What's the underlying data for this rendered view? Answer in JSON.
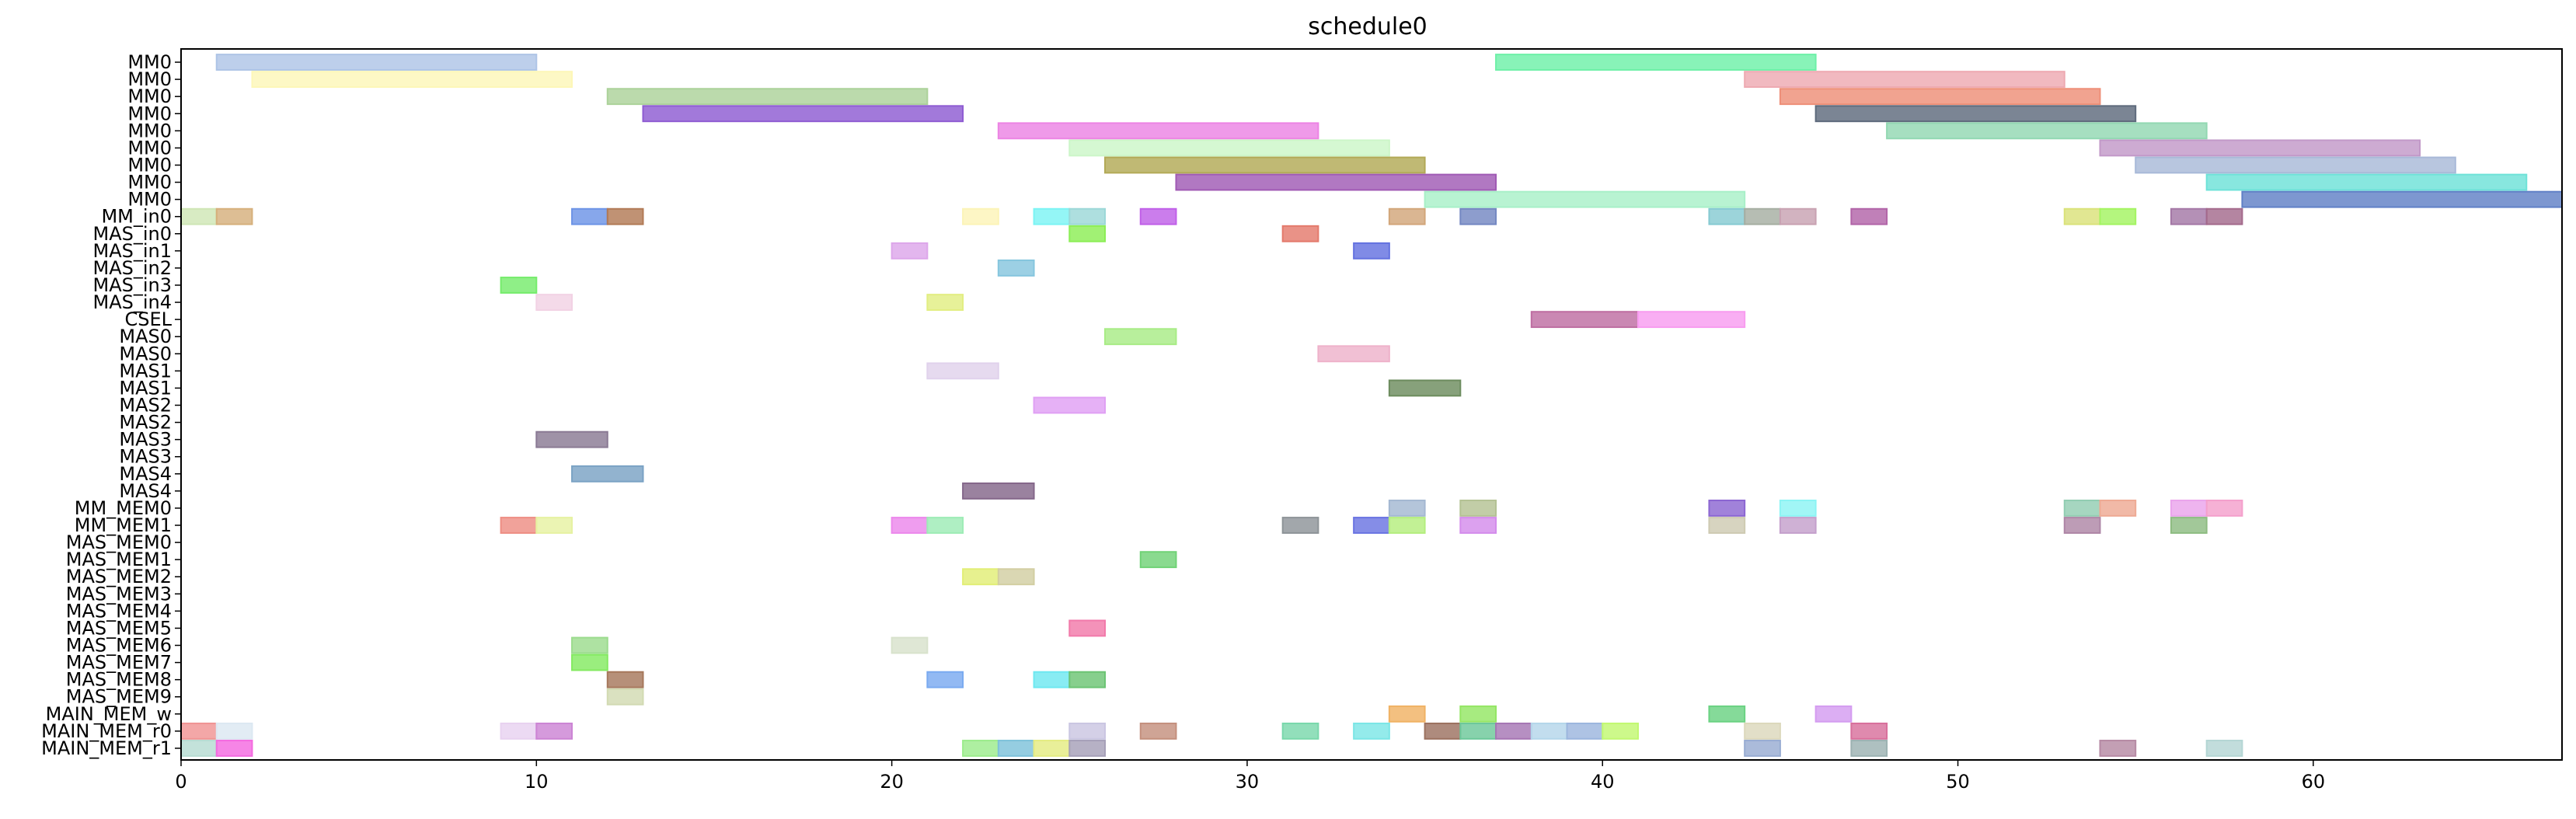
{
  "chart_data": {
    "type": "gantt",
    "title": "schedule0",
    "xlabel": "",
    "ylabel": "",
    "xlim": [
      0,
      67
    ],
    "x_ticks": [
      0,
      10,
      20,
      30,
      40,
      50,
      60
    ],
    "grid": false,
    "rows": [
      "MM0",
      "MM0",
      "MM0",
      "MM0",
      "MM0",
      "MM0",
      "MM0",
      "MM0",
      "MM0",
      "MM_in0",
      "MAS_in0",
      "MAS_in1",
      "MAS_in2",
      "MAS_in3",
      "MAS_in4",
      "CSEL",
      "MAS0",
      "MAS0",
      "MAS1",
      "MAS1",
      "MAS2",
      "MAS2",
      "MAS3",
      "MAS3",
      "MAS4",
      "MAS4",
      "MM_MEM0",
      "MM_MEM1",
      "MAS_MEM0",
      "MAS_MEM1",
      "MAS_MEM2",
      "MAS_MEM3",
      "MAS_MEM4",
      "MAS_MEM5",
      "MAS_MEM6",
      "MAS_MEM7",
      "MAS_MEM8",
      "MAS_MEM9",
      "MAIN_MEM_w",
      "MAIN_MEM_r0",
      "MAIN_MEM_r1"
    ],
    "tasks": [
      {
        "row": 0,
        "start": 1,
        "end": 10,
        "color": "#aec4e6"
      },
      {
        "row": 0,
        "start": 37,
        "end": 46,
        "color": "#6ef0a8"
      },
      {
        "row": 1,
        "start": 2,
        "end": 11,
        "color": "#fdf7b8"
      },
      {
        "row": 1,
        "start": 44,
        "end": 53,
        "color": "#eeaab2"
      },
      {
        "row": 2,
        "start": 12,
        "end": 21,
        "color": "#acd29a"
      },
      {
        "row": 2,
        "start": 45,
        "end": 54,
        "color": "#ee8f78"
      },
      {
        "row": 3,
        "start": 13,
        "end": 22,
        "color": "#8e5cd2"
      },
      {
        "row": 3,
        "start": 46,
        "end": 55,
        "color": "#5e6a7c"
      },
      {
        "row": 4,
        "start": 23,
        "end": 32,
        "color": "#ec84e4"
      },
      {
        "row": 4,
        "start": 48,
        "end": 57,
        "color": "#92d8b2"
      },
      {
        "row": 5,
        "start": 25,
        "end": 34,
        "color": "#ccf6c8"
      },
      {
        "row": 5,
        "start": 54,
        "end": 63,
        "color": "#c299c8"
      },
      {
        "row": 6,
        "start": 26,
        "end": 35,
        "color": "#b2a956"
      },
      {
        "row": 6,
        "start": 55,
        "end": 64,
        "color": "#a8b9d8"
      },
      {
        "row": 7,
        "start": 28,
        "end": 37,
        "color": "#a05ab4"
      },
      {
        "row": 7,
        "start": 57,
        "end": 66,
        "color": "#6ee2d8"
      },
      {
        "row": 8,
        "start": 35,
        "end": 44,
        "color": "#a8f0c8"
      },
      {
        "row": 8,
        "start": 58,
        "end": 67,
        "color": "#6080c6"
      },
      {
        "row": 9,
        "start": 0,
        "end": 1,
        "color": "#cfe6b6"
      },
      {
        "row": 9,
        "start": 1,
        "end": 2,
        "color": "#d6b07c"
      },
      {
        "row": 9,
        "start": 11,
        "end": 12,
        "color": "#6d94e6"
      },
      {
        "row": 9,
        "start": 12,
        "end": 13,
        "color": "#b27a56"
      },
      {
        "row": 9,
        "start": 22,
        "end": 23,
        "color": "#fcf4b8"
      },
      {
        "row": 9,
        "start": 24,
        "end": 25,
        "color": "#7cf4f4"
      },
      {
        "row": 9,
        "start": 25,
        "end": 26,
        "color": "#9cd8d8"
      },
      {
        "row": 9,
        "start": 27,
        "end": 28,
        "color": "#c060e8"
      },
      {
        "row": 9,
        "start": 34,
        "end": 35,
        "color": "#d2a67a"
      },
      {
        "row": 9,
        "start": 36,
        "end": 37,
        "color": "#7488c2"
      },
      {
        "row": 9,
        "start": 43,
        "end": 44,
        "color": "#86cad2"
      },
      {
        "row": 9,
        "start": 44,
        "end": 45,
        "color": "#a6aea2"
      },
      {
        "row": 9,
        "start": 45,
        "end": 46,
        "color": "#c8a2b2"
      },
      {
        "row": 9,
        "start": 47,
        "end": 48,
        "color": "#b264a8"
      },
      {
        "row": 9,
        "start": 53,
        "end": 54,
        "color": "#dae27a"
      },
      {
        "row": 9,
        "start": 54,
        "end": 55,
        "color": "#a4f462"
      },
      {
        "row": 9,
        "start": 56,
        "end": 57,
        "color": "#a478a6"
      },
      {
        "row": 9,
        "start": 57,
        "end": 58,
        "color": "#a46a8c"
      },
      {
        "row": 10,
        "start": 25,
        "end": 26,
        "color": "#8cee56"
      },
      {
        "row": 10,
        "start": 31,
        "end": 32,
        "color": "#e47a6c"
      },
      {
        "row": 11,
        "start": 20,
        "end": 21,
        "color": "#dda6ea"
      },
      {
        "row": 11,
        "start": 33,
        "end": 34,
        "color": "#6472e0"
      },
      {
        "row": 12,
        "start": 23,
        "end": 24,
        "color": "#86c6de"
      },
      {
        "row": 13,
        "start": 9,
        "end": 10,
        "color": "#76ec6c"
      },
      {
        "row": 14,
        "start": 10,
        "end": 11,
        "color": "#f2d2e4"
      },
      {
        "row": 14,
        "start": 21,
        "end": 22,
        "color": "#e2ee82"
      },
      {
        "row": 15,
        "start": 38,
        "end": 41,
        "color": "#be6ea2"
      },
      {
        "row": 15,
        "start": 41,
        "end": 44,
        "color": "#f89cf0"
      },
      {
        "row": 16,
        "start": 26,
        "end": 28,
        "color": "#a8ec86"
      },
      {
        "row": 17,
        "start": 32,
        "end": 34,
        "color": "#eeb2ca"
      },
      {
        "row": 18,
        "start": 21,
        "end": 23,
        "color": "#e0d2ec"
      },
      {
        "row": 19,
        "start": 34,
        "end": 36,
        "color": "#6c8c5e"
      },
      {
        "row": 20,
        "start": 24,
        "end": 26,
        "color": "#e0a0f4"
      },
      {
        "row": 22,
        "start": 10,
        "end": 12,
        "color": "#8a7a94"
      },
      {
        "row": 24,
        "start": 11,
        "end": 13,
        "color": "#7aa2c4"
      },
      {
        "row": 25,
        "start": 22,
        "end": 24,
        "color": "#84678a"
      },
      {
        "row": 26,
        "start": 34,
        "end": 35,
        "color": "#a4b8d2"
      },
      {
        "row": 26,
        "start": 36,
        "end": 37,
        "color": "#b4c294"
      },
      {
        "row": 26,
        "start": 43,
        "end": 44,
        "color": "#8c66d2"
      },
      {
        "row": 26,
        "start": 45,
        "end": 46,
        "color": "#8cf4f4"
      },
      {
        "row": 26,
        "start": 53,
        "end": 54,
        "color": "#92cdb2"
      },
      {
        "row": 26,
        "start": 54,
        "end": 55,
        "color": "#eeaa94"
      },
      {
        "row": 26,
        "start": 56,
        "end": 57,
        "color": "#eaa4ec"
      },
      {
        "row": 26,
        "start": 57,
        "end": 58,
        "color": "#f4a0cc"
      },
      {
        "row": 27,
        "start": 9,
        "end": 10,
        "color": "#ee8e84"
      },
      {
        "row": 27,
        "start": 10,
        "end": 11,
        "color": "#e6f2a2"
      },
      {
        "row": 27,
        "start": 20,
        "end": 21,
        "color": "#ec88ec"
      },
      {
        "row": 27,
        "start": 21,
        "end": 22,
        "color": "#9eecb6"
      },
      {
        "row": 27,
        "start": 31,
        "end": 32,
        "color": "#8e9498"
      },
      {
        "row": 27,
        "start": 33,
        "end": 34,
        "color": "#6a74e2"
      },
      {
        "row": 27,
        "start": 34,
        "end": 35,
        "color": "#b4ee7e"
      },
      {
        "row": 27,
        "start": 36,
        "end": 37,
        "color": "#d48cec"
      },
      {
        "row": 27,
        "start": 43,
        "end": 44,
        "color": "#cecab2"
      },
      {
        "row": 27,
        "start": 45,
        "end": 46,
        "color": "#c4a0cc"
      },
      {
        "row": 27,
        "start": 53,
        "end": 54,
        "color": "#ae86a6"
      },
      {
        "row": 27,
        "start": 56,
        "end": 57,
        "color": "#8ebc82"
      },
      {
        "row": 29,
        "start": 27,
        "end": 28,
        "color": "#70d276"
      },
      {
        "row": 30,
        "start": 22,
        "end": 23,
        "color": "#e2ee76"
      },
      {
        "row": 30,
        "start": 23,
        "end": 24,
        "color": "#d2cea2"
      },
      {
        "row": 33,
        "start": 25,
        "end": 26,
        "color": "#f27aaa"
      },
      {
        "row": 34,
        "start": 11,
        "end": 12,
        "color": "#9cdc8e"
      },
      {
        "row": 34,
        "start": 20,
        "end": 21,
        "color": "#d8e2cc"
      },
      {
        "row": 35,
        "start": 11,
        "end": 12,
        "color": "#84ea62"
      },
      {
        "row": 36,
        "start": 12,
        "end": 13,
        "color": "#a6785c"
      },
      {
        "row": 36,
        "start": 21,
        "end": 22,
        "color": "#7aaaf0"
      },
      {
        "row": 36,
        "start": 24,
        "end": 25,
        "color": "#6ee8f0"
      },
      {
        "row": 36,
        "start": 25,
        "end": 26,
        "color": "#6cc474"
      },
      {
        "row": 37,
        "start": 12,
        "end": 13,
        "color": "#d2dab2"
      },
      {
        "row": 38,
        "start": 34,
        "end": 35,
        "color": "#f0b264"
      },
      {
        "row": 38,
        "start": 36,
        "end": 37,
        "color": "#94e664"
      },
      {
        "row": 38,
        "start": 43,
        "end": 44,
        "color": "#6ad282"
      },
      {
        "row": 38,
        "start": 46,
        "end": 47,
        "color": "#d49cf0"
      },
      {
        "row": 39,
        "start": 0,
        "end": 1,
        "color": "#f09494"
      },
      {
        "row": 39,
        "start": 1,
        "end": 2,
        "color": "#dce8f2"
      },
      {
        "row": 39,
        "start": 9,
        "end": 10,
        "color": "#e8d2f0"
      },
      {
        "row": 39,
        "start": 10,
        "end": 11,
        "color": "#cc84d4"
      },
      {
        "row": 39,
        "start": 25,
        "end": 26,
        "color": "#cac6e2"
      },
      {
        "row": 39,
        "start": 27,
        "end": 28,
        "color": "#c4907e"
      },
      {
        "row": 39,
        "start": 31,
        "end": 32,
        "color": "#7ad8ac"
      },
      {
        "row": 39,
        "start": 33,
        "end": 34,
        "color": "#7ce6e6"
      },
      {
        "row": 39,
        "start": 35,
        "end": 36,
        "color": "#9c7260"
      },
      {
        "row": 39,
        "start": 36,
        "end": 37,
        "color": "#6cc89a"
      },
      {
        "row": 39,
        "start": 37,
        "end": 38,
        "color": "#a676b4"
      },
      {
        "row": 39,
        "start": 38,
        "end": 39,
        "color": "#b4d6ea"
      },
      {
        "row": 39,
        "start": 39,
        "end": 40,
        "color": "#9cb6de"
      },
      {
        "row": 39,
        "start": 40,
        "end": 41,
        "color": "#c2f872"
      },
      {
        "row": 39,
        "start": 44,
        "end": 45,
        "color": "#dcd8bc"
      },
      {
        "row": 39,
        "start": 47,
        "end": 48,
        "color": "#d8709c"
      },
      {
        "row": 40,
        "start": 0,
        "end": 1,
        "color": "#b6dcd2"
      },
      {
        "row": 40,
        "start": 1,
        "end": 2,
        "color": "#f46ae0"
      },
      {
        "row": 40,
        "start": 22,
        "end": 23,
        "color": "#9cec8c"
      },
      {
        "row": 40,
        "start": 23,
        "end": 24,
        "color": "#7ec2da"
      },
      {
        "row": 40,
        "start": 24,
        "end": 25,
        "color": "#e4ec82"
      },
      {
        "row": 40,
        "start": 25,
        "end": 26,
        "color": "#a6a0b8"
      },
      {
        "row": 40,
        "start": 44,
        "end": 45,
        "color": "#98acd2"
      },
      {
        "row": 40,
        "start": 47,
        "end": 48,
        "color": "#9cb2b2"
      },
      {
        "row": 40,
        "start": 54,
        "end": 55,
        "color": "#b68aa4"
      },
      {
        "row": 40,
        "start": 57,
        "end": 58,
        "color": "#b4d6d4"
      }
    ]
  }
}
